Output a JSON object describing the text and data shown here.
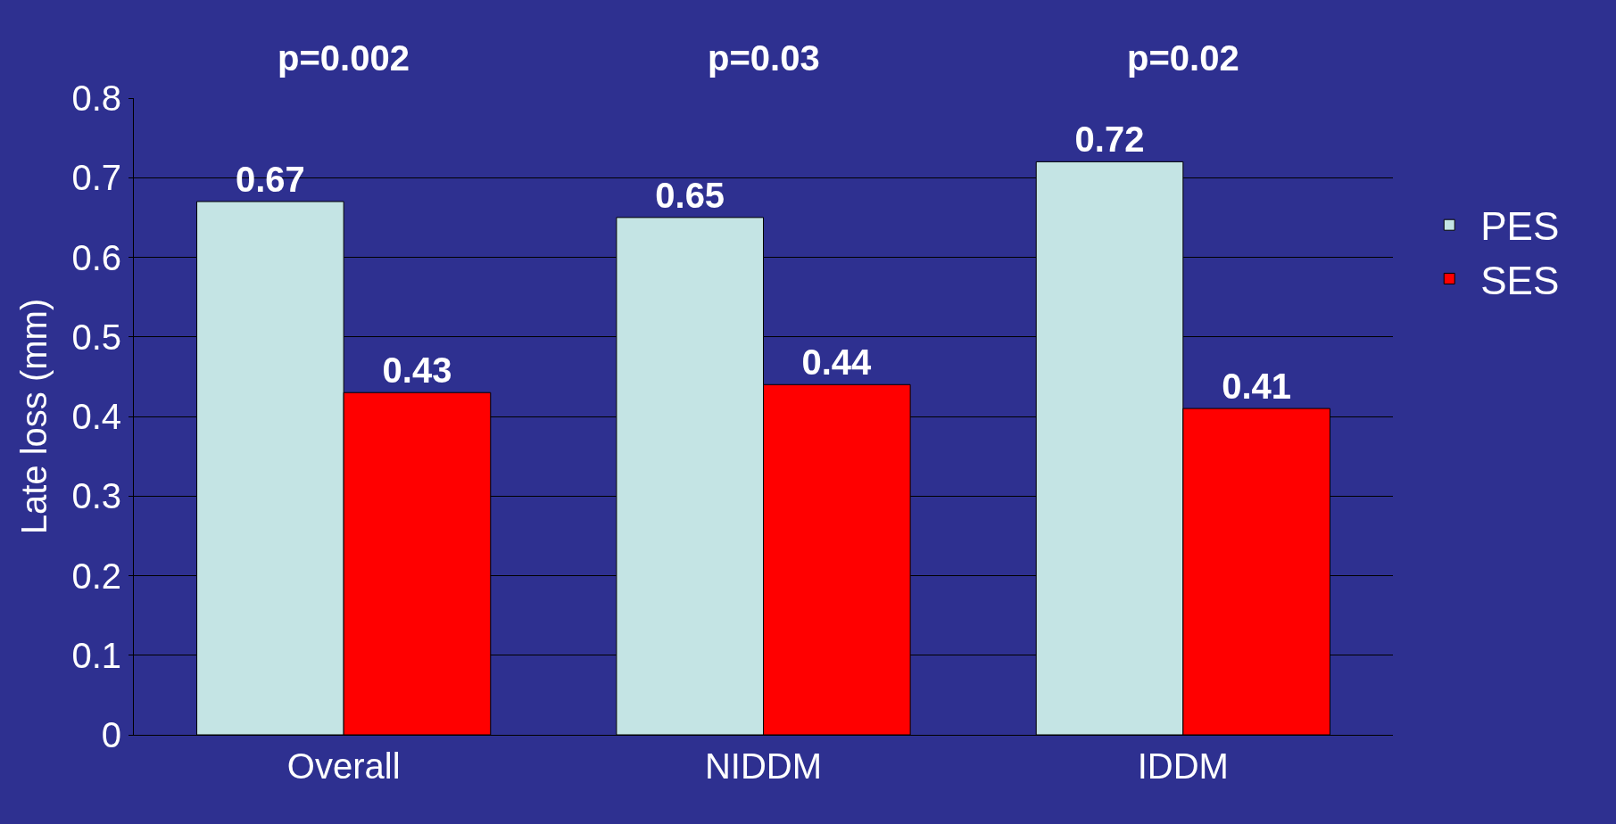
{
  "chart_data": {
    "type": "bar",
    "ylabel": "Late loss (mm)",
    "categories": [
      "Overall",
      "NIDDM",
      "IDDM"
    ],
    "series": [
      {
        "name": "PES",
        "color": "#c4e4e4",
        "values": [
          0.67,
          0.65,
          0.72
        ]
      },
      {
        "name": "SES",
        "color": "#ff0000",
        "values": [
          0.43,
          0.44,
          0.41
        ]
      }
    ],
    "ylim": [
      0,
      0.8
    ],
    "yticks": [
      0,
      0.1,
      0.2,
      0.3,
      0.4,
      0.5,
      0.6,
      0.7,
      0.8
    ],
    "grid": "y",
    "legend": "right",
    "data_labels": true,
    "annotations": [
      "p=0.002",
      "p=0.03",
      "p=0.02"
    ]
  }
}
